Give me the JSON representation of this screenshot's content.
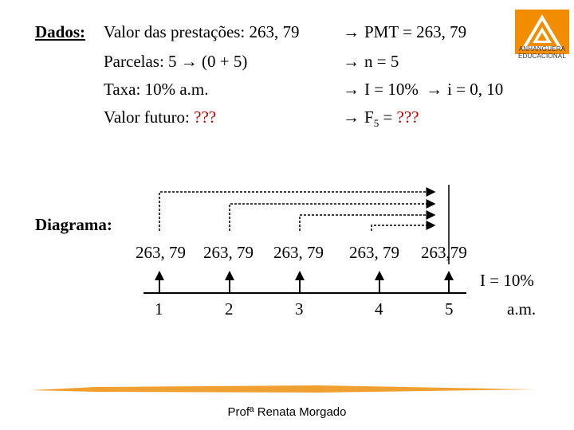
{
  "dados": {
    "heading": "Dados:",
    "valor_label": "Valor das prestações: 263, 79",
    "parcelas_label": "Parcelas: 5 ",
    "parcelas_value": " (0 + 5)",
    "taxa_label": "Taxa: 10%  a.m.",
    "vf_label": "Valor futuro: ",
    "vf_value": "???"
  },
  "formulas": {
    "arrow_glyph": "→",
    "pmt": "PMT = 263, 79",
    "n": "n = 5",
    "i_pct": "I = 10%",
    "i_dec": "i = 0, 10",
    "f5_letter": "F",
    "f5_sub": "5",
    "f5_rest": " = ???"
  },
  "diagram": {
    "label": "Diagrama:",
    "payments": [
      "263, 79",
      "263, 79",
      "263, 79",
      "263, 79",
      "263,79"
    ],
    "periods": [
      "1",
      "2",
      "3",
      "4",
      "5"
    ],
    "rate": "I = 10%",
    "rate_unit": "a.m."
  },
  "logo": {
    "line1": "ANHANGUERA",
    "line2": "EDUCACIONAL",
    "color": "#f28c00"
  },
  "footer": {
    "author": "Profª Renata Morgado",
    "bar_color": "#f0a030"
  },
  "colors": {
    "highlight": "#c00000"
  }
}
